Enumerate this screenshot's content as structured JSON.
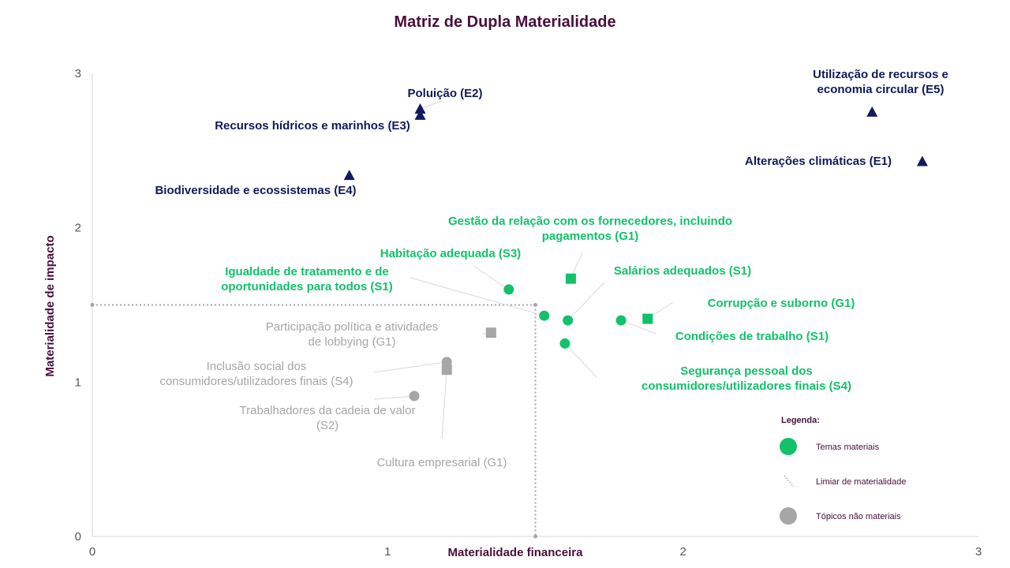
{
  "chart_data": {
    "type": "scatter",
    "title": "Matriz de Dupla Materialidade",
    "xlabel": "Materialidade financeira",
    "ylabel": "Materialidade de impacto",
    "xlim": [
      0,
      3
    ],
    "ylim": [
      0,
      3
    ],
    "xticks": [
      "0",
      "1",
      "2",
      "3"
    ],
    "yticks": [
      "0",
      "1",
      "2",
      "3"
    ],
    "grid": false,
    "threshold": {
      "x": 1.5,
      "y": 1.5
    },
    "colors": {
      "environment": "#101a5c",
      "material": "#11c26a",
      "non_material": "#a6a6a6",
      "threshold": "#a6a6a6"
    },
    "points": [
      {
        "label": [
          "Poluição (E2)"
        ],
        "x": 1.11,
        "y": 2.77,
        "marker": "triangle",
        "group": "environment"
      },
      {
        "label": [
          "Recursos hídricos e marinhos (E3)"
        ],
        "x": 1.11,
        "y": 2.73,
        "marker": "triangle",
        "group": "environment"
      },
      {
        "label": [
          "Biodiversidade e ecossistemas (E4)"
        ],
        "x": 0.87,
        "y": 2.34,
        "marker": "triangle",
        "group": "environment"
      },
      {
        "label": [
          "Utilização de recursos e",
          "economia circular (E5)"
        ],
        "x": 2.64,
        "y": 2.75,
        "marker": "triangle",
        "group": "environment"
      },
      {
        "label": [
          "Alterações climáticas (E1)"
        ],
        "x": 2.81,
        "y": 2.43,
        "marker": "triangle",
        "group": "environment"
      },
      {
        "label": [
          "Gestão da relação com os fornecedores, incluindo",
          "pagamentos (G1)"
        ],
        "x": 1.62,
        "y": 1.67,
        "marker": "square",
        "group": "material"
      },
      {
        "label": [
          "Habitação adequada (S3)"
        ],
        "x": 1.41,
        "y": 1.6,
        "marker": "circle",
        "group": "material"
      },
      {
        "label": [
          "Igualdade de tratamento e de",
          "oportunidades para todos (S1)"
        ],
        "x": 1.53,
        "y": 1.43,
        "marker": "circle",
        "group": "material"
      },
      {
        "label": [
          "Salários adequados (S1)"
        ],
        "x": 1.61,
        "y": 1.4,
        "marker": "circle",
        "group": "material"
      },
      {
        "label": [
          "Corrupção e suborno (G1)"
        ],
        "x": 1.88,
        "y": 1.41,
        "marker": "square",
        "group": "material"
      },
      {
        "label": [
          "Condições de trabalho (S1)"
        ],
        "x": 1.79,
        "y": 1.4,
        "marker": "circle",
        "group": "material"
      },
      {
        "label": [
          "Segurança pessoal dos",
          "consumidores/utilizadores finais (S4)"
        ],
        "x": 1.6,
        "y": 1.25,
        "marker": "circle",
        "group": "material"
      },
      {
        "label": [
          "Participação política e atividades",
          "de lobbying (G1)"
        ],
        "x": 1.35,
        "y": 1.32,
        "marker": "square",
        "group": "non_material"
      },
      {
        "label": [
          "Inclusão social dos",
          "consumidores/utilizadores finais (S4)"
        ],
        "x": 1.2,
        "y": 1.13,
        "marker": "circle",
        "group": "non_material"
      },
      {
        "label": [
          "Trabalhadores da cadeia de valor",
          "(S2)"
        ],
        "x": 1.09,
        "y": 0.91,
        "marker": "circle",
        "group": "non_material"
      },
      {
        "label": [
          "Cultura empresarial (G1)"
        ],
        "x": 1.2,
        "y": 1.08,
        "marker": "square",
        "group": "non_material"
      }
    ],
    "legend": {
      "title": "Legenda:",
      "placement": "bottom-right",
      "items": [
        {
          "label": "Temas materiais",
          "symbol": "circle",
          "color": "#11c26a"
        },
        {
          "label": "Limiar de materialidade",
          "symbol": "dotted-line",
          "color": "#a6a6a6"
        },
        {
          "label": "Tópicos não materiais",
          "symbol": "circle",
          "color": "#a6a6a6"
        }
      ]
    }
  }
}
